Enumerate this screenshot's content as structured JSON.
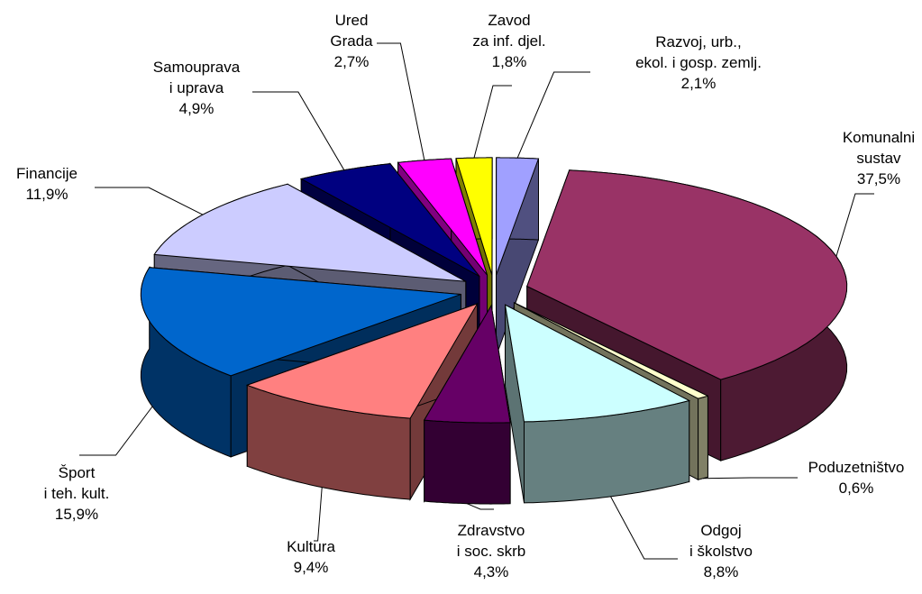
{
  "chart_data": {
    "type": "pie3d",
    "categories": [
      "Komunalni\nsustav",
      "Poduzetništvo",
      "Odgoj\ni školstvo",
      "Zdravstvo\ni soc. skrb",
      "Kultura",
      "Šport\ni teh. kult.",
      "Financije",
      "Samouprava\ni uprava",
      "Ured\nGrada",
      "Zavod\nza inf. djel.",
      "Razvoj, urb.,\nekol. i gosp. zemlj."
    ],
    "values": [
      37.5,
      0.6,
      8.8,
      4.3,
      9.4,
      15.9,
      11.9,
      4.9,
      2.7,
      1.8,
      2.1
    ],
    "value_labels": [
      "37,5%",
      "0,6%",
      "8,8%",
      "4,3%",
      "9,4%",
      "15,9%",
      "11,9%",
      "4,9%",
      "2,7%",
      "1,8%",
      "2,1%"
    ],
    "colors": [
      "#993366",
      "#ffffcc",
      "#ccffff",
      "#660066",
      "#ff8080",
      "#0066cc",
      "#ccccff",
      "#000080",
      "#ff00ff",
      "#ffff00",
      "#a0a0ff"
    ]
  }
}
